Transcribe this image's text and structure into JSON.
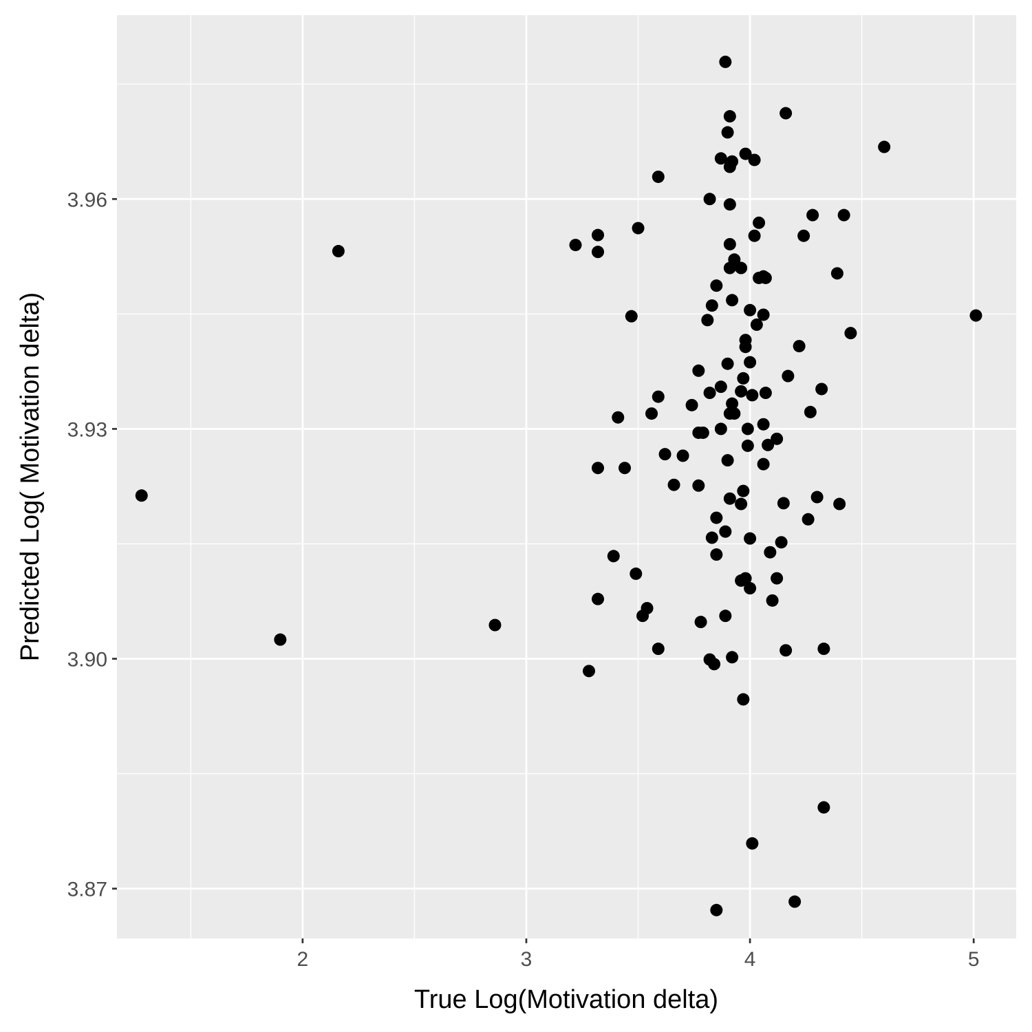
{
  "chart_data": {
    "type": "scatter",
    "title": "",
    "xlabel": "True Log(Motivation delta)",
    "ylabel": "Predicted Log( Motivation delta)",
    "xlim": [
      1.17,
      5.19
    ],
    "ylim": [
      3.8635,
      3.984
    ],
    "x_ticks": [
      2,
      3,
      4,
      5
    ],
    "x_tick_labels": [
      "2",
      "3",
      "4",
      "5"
    ],
    "y_ticks": [
      3.87,
      3.9,
      3.93,
      3.96
    ],
    "y_tick_labels": [
      "3.87",
      "3.90",
      "3.93",
      "3.96"
    ],
    "grid": true,
    "legend": "none",
    "colors": {
      "panel_background": "#ebebeb",
      "grid": "#ffffff",
      "point": "#000000",
      "tick": "#333333"
    },
    "series": [
      {
        "x": [
          3.89,
          3.91,
          4.16,
          3.9,
          4.6,
          3.98,
          3.87,
          3.92,
          3.91,
          4.02,
          3.59,
          3.82,
          3.91,
          4.28,
          4.42,
          3.5,
          4.04,
          3.22,
          3.32,
          4.24,
          4.02,
          3.91,
          2.16,
          3.32,
          3.93,
          3.91,
          3.96,
          4.39,
          4.06,
          4.04,
          4.07,
          3.85,
          3.92,
          3.83,
          4.0,
          4.06,
          3.47,
          3.81,
          5.01,
          4.03,
          4.45,
          3.98,
          3.98,
          4.22,
          3.9,
          4.0,
          3.77,
          4.17,
          3.97,
          3.87,
          3.96,
          3.82,
          4.07,
          4.01,
          4.32,
          3.59,
          3.92,
          3.74,
          3.91,
          3.93,
          4.27,
          3.56,
          3.41,
          4.06,
          3.87,
          3.99,
          3.77,
          3.79,
          4.12,
          3.99,
          4.08,
          3.62,
          3.7,
          3.9,
          4.06,
          3.32,
          3.44,
          3.66,
          3.77,
          3.97,
          4.3,
          3.91,
          3.96,
          4.15,
          4.4,
          3.85,
          4.26,
          1.28,
          3.89,
          3.83,
          4.0,
          4.14,
          4.09,
          3.39,
          3.85,
          3.49,
          3.98,
          4.12,
          3.96,
          4.0,
          3.32,
          4.1,
          3.54,
          3.52,
          3.89,
          2.86,
          3.78,
          1.9,
          3.59,
          4.16,
          4.33,
          3.92,
          3.82,
          3.84,
          3.28,
          3.97,
          4.33,
          4.01,
          4.2,
          3.85
        ],
        "y": [
          3.9779,
          3.9708,
          3.9712,
          3.9687,
          3.9668,
          3.9659,
          3.9653,
          3.9649,
          3.9642,
          3.9651,
          3.9629,
          3.96,
          3.9593,
          3.9579,
          3.9579,
          3.9562,
          3.9569,
          3.954,
          3.9553,
          3.9552,
          3.9552,
          3.9541,
          3.9532,
          3.9531,
          3.9521,
          3.951,
          3.951,
          3.9503,
          3.9499,
          3.9497,
          3.9497,
          3.9487,
          3.9468,
          3.9461,
          3.9455,
          3.9449,
          3.9447,
          3.9442,
          3.9448,
          3.9436,
          3.9425,
          3.9416,
          3.9407,
          3.9408,
          3.9385,
          3.9387,
          3.9376,
          3.9369,
          3.9366,
          3.9355,
          3.9349,
          3.9347,
          3.9347,
          3.9344,
          3.9352,
          3.9342,
          3.9333,
          3.9331,
          3.932,
          3.932,
          3.9322,
          3.932,
          3.9315,
          3.9306,
          3.93,
          3.93,
          3.9295,
          3.9295,
          3.9287,
          3.9278,
          3.9279,
          3.9267,
          3.9265,
          3.9259,
          3.9254,
          3.9249,
          3.9249,
          3.9227,
          3.9226,
          3.9219,
          3.9211,
          3.9209,
          3.9202,
          3.9203,
          3.9202,
          3.9184,
          3.9182,
          3.9213,
          3.9166,
          3.9158,
          3.9157,
          3.9152,
          3.9139,
          3.9134,
          3.9136,
          3.9111,
          3.9105,
          3.9105,
          3.9102,
          3.9092,
          3.9078,
          3.9076,
          3.9066,
          3.9056,
          3.9056,
          3.9044,
          3.9048,
          3.9025,
          3.9013,
          3.9011,
          3.9013,
          3.9002,
          3.8999,
          3.8993,
          3.8984,
          3.8947,
          3.8806,
          3.8759,
          3.8683,
          3.8672
        ]
      }
    ]
  }
}
